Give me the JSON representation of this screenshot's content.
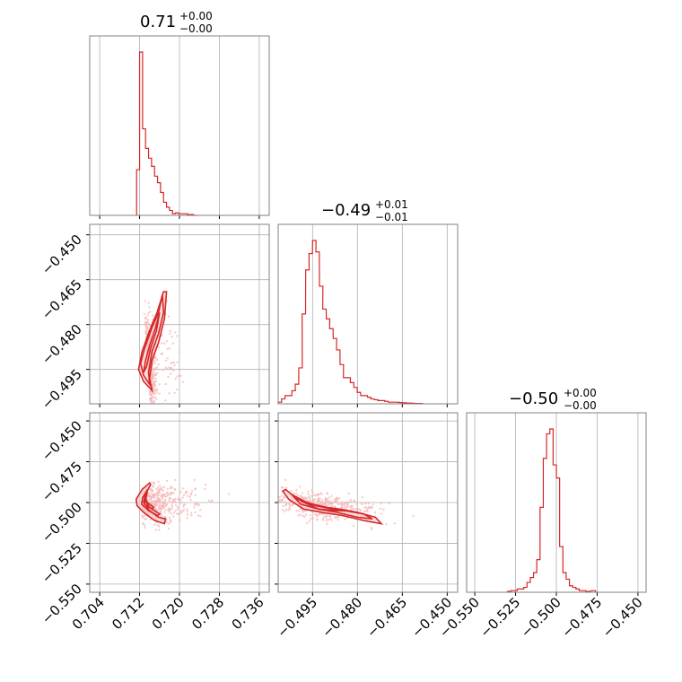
{
  "chart_data": [
    {
      "type": "histogram",
      "panel": "diag-0",
      "title": {
        "value": "0.71",
        "sup": "+0.00",
        "sub": "−0.00"
      },
      "xlim": [
        0.702,
        0.738
      ],
      "xticks": [
        0.704,
        0.712,
        0.72,
        0.728,
        0.736
      ],
      "bin_width": 0.0006,
      "bins": [
        [
          0.7114,
          0.28
        ],
        [
          0.712,
          1.0
        ],
        [
          0.7126,
          0.53
        ],
        [
          0.7132,
          0.41
        ],
        [
          0.7138,
          0.35
        ],
        [
          0.7144,
          0.3
        ],
        [
          0.715,
          0.24
        ],
        [
          0.7156,
          0.2
        ],
        [
          0.7162,
          0.14
        ],
        [
          0.7168,
          0.08
        ],
        [
          0.7174,
          0.05
        ],
        [
          0.718,
          0.03
        ],
        [
          0.7186,
          0.01
        ],
        [
          0.7192,
          0.015
        ],
        [
          0.7198,
          0.01
        ],
        [
          0.7204,
          0.01
        ],
        [
          0.721,
          0.01
        ],
        [
          0.7216,
          0.005
        ],
        [
          0.7222,
          0.005
        ],
        [
          0.7228,
          0.0
        ]
      ]
    },
    {
      "type": "histogram",
      "panel": "diag-1",
      "title": {
        "value": "−0.49",
        "sup": "+0.01",
        "sub": "−0.01"
      },
      "xlim": [
        -0.5065,
        -0.4465
      ],
      "xticks": [
        -0.495,
        -0.48,
        -0.465,
        -0.45
      ],
      "xticklabels": [
        "−0.495",
        "−0.480",
        "−0.465",
        "−0.450"
      ],
      "bin_width": 0.00115,
      "bins": [
        [
          -0.5065,
          0.01
        ],
        [
          -0.5054,
          0.03
        ],
        [
          -0.5042,
          0.05
        ],
        [
          -0.5031,
          0.05
        ],
        [
          -0.5019,
          0.08
        ],
        [
          -0.5008,
          0.12
        ],
        [
          -0.4996,
          0.22
        ],
        [
          -0.4985,
          0.55
        ],
        [
          -0.4973,
          0.82
        ],
        [
          -0.4962,
          0.92
        ],
        [
          -0.495,
          1.0
        ],
        [
          -0.4939,
          0.93
        ],
        [
          -0.4927,
          0.72
        ],
        [
          -0.4916,
          0.58
        ],
        [
          -0.4904,
          0.52
        ],
        [
          -0.4893,
          0.46
        ],
        [
          -0.4881,
          0.4
        ],
        [
          -0.487,
          0.33
        ],
        [
          -0.4858,
          0.24
        ],
        [
          -0.4847,
          0.16
        ],
        [
          -0.4835,
          0.16
        ],
        [
          -0.4824,
          0.13
        ],
        [
          -0.4812,
          0.1
        ],
        [
          -0.4801,
          0.07
        ],
        [
          -0.4789,
          0.05
        ],
        [
          -0.4778,
          0.05
        ],
        [
          -0.4766,
          0.04
        ],
        [
          -0.4755,
          0.03
        ],
        [
          -0.4743,
          0.025
        ],
        [
          -0.4732,
          0.02
        ],
        [
          -0.472,
          0.02
        ],
        [
          -0.4709,
          0.015
        ],
        [
          -0.4697,
          0.01
        ],
        [
          -0.4686,
          0.01
        ],
        [
          -0.4674,
          0.01
        ],
        [
          -0.4663,
          0.008
        ],
        [
          -0.4651,
          0.006
        ],
        [
          -0.464,
          0.005
        ],
        [
          -0.4628,
          0.004
        ],
        [
          -0.4617,
          0.003
        ],
        [
          -0.4605,
          0.002
        ],
        [
          -0.4594,
          0.002
        ]
      ]
    },
    {
      "type": "histogram",
      "panel": "diag-2",
      "title": {
        "value": "−0.50",
        "sup": "+0.00",
        "sub": "−0.00"
      },
      "xlim": [
        -0.555,
        -0.445
      ],
      "xticks": [
        -0.55,
        -0.525,
        -0.5,
        -0.475,
        -0.45
      ],
      "xticklabels": [
        "−0.550",
        "−0.525",
        "−0.500",
        "−0.475",
        "−0.450"
      ],
      "bin_width": 0.002,
      "bins": [
        [
          -0.53,
          0.005
        ],
        [
          -0.528,
          0.01
        ],
        [
          -0.526,
          0.01
        ],
        [
          -0.524,
          0.02
        ],
        [
          -0.522,
          0.02
        ],
        [
          -0.52,
          0.03
        ],
        [
          -0.518,
          0.06
        ],
        [
          -0.516,
          0.09
        ],
        [
          -0.514,
          0.12
        ],
        [
          -0.512,
          0.2
        ],
        [
          -0.51,
          0.52
        ],
        [
          -0.508,
          0.82
        ],
        [
          -0.506,
          0.97
        ],
        [
          -0.504,
          1.0
        ],
        [
          -0.502,
          0.78
        ],
        [
          -0.5,
          0.7
        ],
        [
          -0.498,
          0.28
        ],
        [
          -0.496,
          0.12
        ],
        [
          -0.494,
          0.08
        ],
        [
          -0.492,
          0.04
        ],
        [
          -0.49,
          0.03
        ],
        [
          -0.488,
          0.02
        ],
        [
          -0.486,
          0.01
        ],
        [
          -0.484,
          0.01
        ],
        [
          -0.482,
          0.005
        ],
        [
          -0.478,
          0.01
        ]
      ]
    },
    {
      "type": "scatter",
      "panel": "joint-1-0",
      "xlim": [
        0.702,
        0.738
      ],
      "ylim": [
        -0.5065,
        -0.4465
      ],
      "yticks": [
        -0.45,
        -0.465,
        -0.48,
        -0.495
      ],
      "yticklabels": [
        "−0.450",
        "−0.465",
        "−0.480",
        "−0.495"
      ],
      "contours": [
        [
          [
            0.7168,
            -0.469
          ],
          [
            0.7174,
            -0.469
          ],
          [
            0.717,
            -0.478
          ],
          [
            0.7158,
            -0.486
          ],
          [
            0.7145,
            -0.492
          ],
          [
            0.714,
            -0.498
          ],
          [
            0.7145,
            -0.502
          ],
          [
            0.7128,
            -0.499
          ],
          [
            0.7118,
            -0.495
          ],
          [
            0.7125,
            -0.489
          ],
          [
            0.714,
            -0.482
          ],
          [
            0.7155,
            -0.476
          ],
          [
            0.7168,
            -0.469
          ]
        ],
        [
          [
            0.7166,
            -0.47
          ],
          [
            0.7168,
            -0.476
          ],
          [
            0.7158,
            -0.483
          ],
          [
            0.7145,
            -0.489
          ],
          [
            0.7138,
            -0.496
          ],
          [
            0.714,
            -0.5
          ],
          [
            0.7128,
            -0.497
          ],
          [
            0.7122,
            -0.493
          ],
          [
            0.713,
            -0.488
          ],
          [
            0.7145,
            -0.481
          ],
          [
            0.7158,
            -0.476
          ],
          [
            0.7166,
            -0.47
          ]
        ],
        [
          [
            0.716,
            -0.476
          ],
          [
            0.7152,
            -0.481
          ],
          [
            0.714,
            -0.487
          ],
          [
            0.7132,
            -0.492
          ],
          [
            0.7128,
            -0.496
          ],
          [
            0.7134,
            -0.494
          ],
          [
            0.7142,
            -0.488
          ],
          [
            0.7154,
            -0.482
          ],
          [
            0.716,
            -0.476
          ]
        ]
      ]
    },
    {
      "type": "scatter",
      "panel": "joint-2-0",
      "xlim": [
        0.702,
        0.738
      ],
      "ylim": [
        -0.555,
        -0.445
      ],
      "yticks": [
        -0.45,
        -0.475,
        -0.5,
        -0.525,
        -0.55
      ],
      "yticklabels": [
        "−0.450",
        "−0.475",
        "−0.500",
        "−0.525",
        "−0.550"
      ],
      "contours": [
        [
          [
            0.714,
            -0.488
          ],
          [
            0.7142,
            -0.489
          ],
          [
            0.7132,
            -0.495
          ],
          [
            0.7128,
            -0.5
          ],
          [
            0.714,
            -0.505
          ],
          [
            0.7158,
            -0.509
          ],
          [
            0.7172,
            -0.51
          ],
          [
            0.717,
            -0.513
          ],
          [
            0.715,
            -0.511
          ],
          [
            0.7128,
            -0.506
          ],
          [
            0.7115,
            -0.502
          ],
          [
            0.7113,
            -0.498
          ],
          [
            0.7125,
            -0.492
          ],
          [
            0.714,
            -0.488
          ]
        ],
        [
          [
            0.7136,
            -0.492
          ],
          [
            0.7126,
            -0.497
          ],
          [
            0.7124,
            -0.501
          ],
          [
            0.7138,
            -0.505
          ],
          [
            0.7156,
            -0.508
          ],
          [
            0.716,
            -0.507
          ],
          [
            0.714,
            -0.503
          ],
          [
            0.7132,
            -0.499
          ],
          [
            0.7136,
            -0.492
          ]
        ],
        [
          [
            0.713,
            -0.497
          ],
          [
            0.713,
            -0.501
          ],
          [
            0.7145,
            -0.504
          ],
          [
            0.7148,
            -0.503
          ],
          [
            0.7136,
            -0.5
          ],
          [
            0.713,
            -0.497
          ]
        ]
      ]
    },
    {
      "type": "scatter",
      "panel": "joint-2-1",
      "xlim": [
        -0.5065,
        -0.4465
      ],
      "ylim": [
        -0.555,
        -0.445
      ],
      "contours": [
        [
          [
            -0.504,
            -0.492
          ],
          [
            -0.5,
            -0.498
          ],
          [
            -0.495,
            -0.501
          ],
          [
            -0.49,
            -0.503
          ],
          [
            -0.486,
            -0.504
          ],
          [
            -0.48,
            -0.506
          ],
          [
            -0.474,
            -0.509
          ],
          [
            -0.472,
            -0.513
          ],
          [
            -0.478,
            -0.511
          ],
          [
            -0.485,
            -0.508
          ],
          [
            -0.492,
            -0.506
          ],
          [
            -0.498,
            -0.504
          ],
          [
            -0.503,
            -0.498
          ],
          [
            -0.505,
            -0.493
          ],
          [
            -0.504,
            -0.492
          ]
        ],
        [
          [
            -0.502,
            -0.495
          ],
          [
            -0.497,
            -0.5
          ],
          [
            -0.491,
            -0.503
          ],
          [
            -0.484,
            -0.505
          ],
          [
            -0.478,
            -0.507
          ],
          [
            -0.475,
            -0.51
          ],
          [
            -0.48,
            -0.509
          ],
          [
            -0.487,
            -0.506
          ],
          [
            -0.493,
            -0.504
          ],
          [
            -0.499,
            -0.501
          ],
          [
            -0.502,
            -0.495
          ]
        ],
        [
          [
            -0.499,
            -0.499
          ],
          [
            -0.494,
            -0.502
          ],
          [
            -0.488,
            -0.504
          ],
          [
            -0.483,
            -0.505
          ],
          [
            -0.487,
            -0.505
          ],
          [
            -0.493,
            -0.504
          ],
          [
            -0.499,
            -0.499
          ]
        ]
      ]
    }
  ],
  "x_ticklabels_bottom_0": [
    "0.704",
    "0.712",
    "0.720",
    "0.728",
    "0.736"
  ],
  "style": {
    "line_color": "#d62728",
    "point_color": "#f4b6b6",
    "fill_color": "#f7c9c9"
  }
}
